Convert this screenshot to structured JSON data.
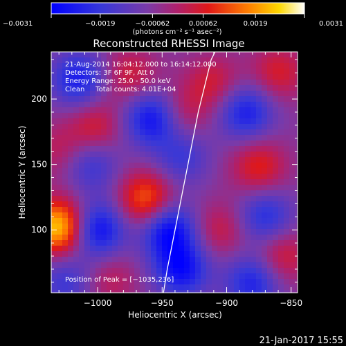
{
  "chart_data": {
    "type": "heatmap",
    "title": "Reconstructed RHESSI Image",
    "xlabel": "Heliocentric X (arcsec)",
    "ylabel": "Heliocentric Y (arcsec)",
    "xlim": [
      -1036,
      -845
    ],
    "ylim": [
      52,
      236
    ],
    "xticks": [
      -1000,
      -950,
      -900,
      -850
    ],
    "xtick_labels": [
      "−1000",
      "−950",
      "−900",
      "−850"
    ],
    "yticks": [
      100,
      150,
      200
    ],
    "ytick_labels": [
      "100",
      "150",
      "200"
    ],
    "colorbar": {
      "min": -0.0031,
      "max": 0.0031,
      "ticks": [
        -0.0031,
        -0.0019,
        -0.00062,
        0.00062,
        0.0019,
        0.0031
      ],
      "tick_labels": [
        "−0.0031",
        "−0.0019",
        "−0.00062",
        "0.00062",
        "0.0019",
        "0.0031"
      ],
      "unit_label": "(photons cm⁻² s⁻¹ asec⁻²)",
      "colormap": [
        "#0000ff",
        "#4040d0",
        "#7a3aa8",
        "#a8286a",
        "#dc1a20",
        "#ff7a00",
        "#ffd000",
        "#ffffff"
      ]
    },
    "annotations": [
      "21-Aug-2014 16:04:12.000 to 16:14:12.000",
      "Detectors: 3F 6F 9F, Att 0",
      "Energy Range: 25.0 - 50.0 keV",
      "Clean     Total counts: 4.01E+04"
    ],
    "peak_label": "Position of Peak = [−1035,236]",
    "peak": {
      "x": -1035,
      "y": 236
    },
    "limb_curve": {
      "x": [
        -949,
        -946,
        -942,
        -938,
        -934,
        -930,
        -926,
        -922,
        -917,
        -912,
        -909
      ],
      "y": [
        52,
        70,
        90,
        110,
        130,
        150,
        170,
        190,
        210,
        230,
        236
      ]
    },
    "sources": [
      {
        "x": -1030,
        "y": 102,
        "value": 0.0031
      },
      {
        "x": -962,
        "y": 123,
        "value": 0.0021
      },
      {
        "x": -1002,
        "y": 178,
        "value": 0.0012
      },
      {
        "x": -975,
        "y": 218,
        "value": 0.0011
      },
      {
        "x": -910,
        "y": 212,
        "value": 0.0011
      },
      {
        "x": -860,
        "y": 220,
        "value": 0.0012
      },
      {
        "x": -875,
        "y": 148,
        "value": 0.0014
      },
      {
        "x": -905,
        "y": 100,
        "value": 0.001
      },
      {
        "x": -857,
        "y": 80,
        "value": 0.0012
      },
      {
        "x": -1030,
        "y": 160,
        "value": 0.0008
      },
      {
        "x": -935,
        "y": 190,
        "value": 0.0009
      },
      {
        "x": -990,
        "y": 62,
        "value": 0.0008
      },
      {
        "x": -1015,
        "y": 215,
        "value": -0.0019
      },
      {
        "x": -958,
        "y": 185,
        "value": -0.0022
      },
      {
        "x": -885,
        "y": 190,
        "value": -0.0019
      },
      {
        "x": -1005,
        "y": 150,
        "value": -0.0013
      },
      {
        "x": -1000,
        "y": 100,
        "value": -0.0023
      },
      {
        "x": -945,
        "y": 100,
        "value": -0.0024
      },
      {
        "x": -935,
        "y": 70,
        "value": -0.0022
      },
      {
        "x": -880,
        "y": 60,
        "value": -0.0018
      },
      {
        "x": -1025,
        "y": 60,
        "value": -0.0012
      },
      {
        "x": -870,
        "y": 110,
        "value": -0.0016
      },
      {
        "x": -935,
        "y": 155,
        "value": -0.0012
      }
    ]
  },
  "timestamp": "21-Jan-2017 15:55"
}
